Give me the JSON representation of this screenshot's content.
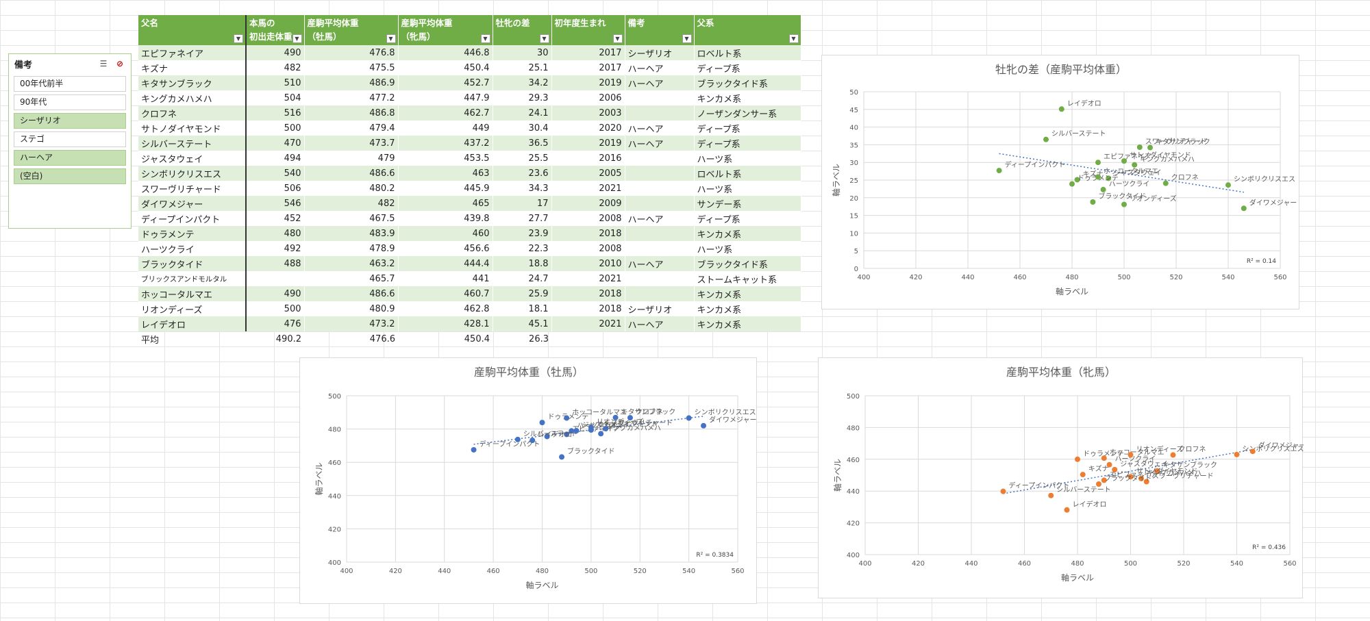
{
  "slicer": {
    "title": "備考",
    "icons": [
      "multi-select-icon",
      "clear-filter-icon"
    ],
    "items": [
      {
        "label": "00年代前半",
        "selected": false
      },
      {
        "label": "90年代",
        "selected": false
      },
      {
        "label": "シーザリオ",
        "selected": true
      },
      {
        "label": "ステゴ",
        "selected": false
      },
      {
        "label": "ハーヘア",
        "selected": true
      },
      {
        "label": "(空白)",
        "selected": true
      }
    ]
  },
  "table": {
    "headers": [
      {
        "l1": "父名",
        "l2": ""
      },
      {
        "l1": "本馬の",
        "l2": "初出走体重"
      },
      {
        "l1": "産駒平均体重",
        "l2": "（牡馬）"
      },
      {
        "l1": "産駒平均体重",
        "l2": "（牝馬）"
      },
      {
        "l1": "牡牝の差",
        "l2": ""
      },
      {
        "l1": "初年度生まれ",
        "l2": ""
      },
      {
        "l1": "備考",
        "l2": ""
      },
      {
        "l1": "父系",
        "l2": ""
      }
    ],
    "rows": [
      [
        "エピファネイア",
        "490",
        "476.8",
        "446.8",
        "30",
        "2017",
        "シーザリオ",
        "ロベルト系"
      ],
      [
        "キズナ",
        "482",
        "475.5",
        "450.4",
        "25.1",
        "2017",
        "ハーヘア",
        "ディープ系"
      ],
      [
        "キタサンブラック",
        "510",
        "486.9",
        "452.7",
        "34.2",
        "2019",
        "ハーヘア",
        "ブラックタイド系"
      ],
      [
        "キングカメハメハ",
        "504",
        "477.2",
        "447.9",
        "29.3",
        "2006",
        "",
        "キンカメ系"
      ],
      [
        "クロフネ",
        "516",
        "486.8",
        "462.7",
        "24.1",
        "2003",
        "",
        "ノーザンダンサー系"
      ],
      [
        "サトノダイヤモンド",
        "500",
        "479.4",
        "449",
        "30.4",
        "2020",
        "ハーヘア",
        "ディープ系"
      ],
      [
        "シルバーステート",
        "470",
        "473.7",
        "437.2",
        "36.5",
        "2019",
        "ハーヘア",
        "ディープ系"
      ],
      [
        "ジャスタウェイ",
        "494",
        "479",
        "453.5",
        "25.5",
        "2016",
        "",
        "ハーツ系"
      ],
      [
        "シンボリクリスエス",
        "540",
        "486.6",
        "463",
        "23.6",
        "2005",
        "",
        "ロベルト系"
      ],
      [
        "スワーヴリチャード",
        "506",
        "480.2",
        "445.9",
        "34.3",
        "2021",
        "",
        "ハーツ系"
      ],
      [
        "ダイワメジャー",
        "546",
        "482",
        "465",
        "17",
        "2009",
        "",
        "サンデー系"
      ],
      [
        "ディープインパクト",
        "452",
        "467.5",
        "439.8",
        "27.7",
        "2008",
        "ハーヘア",
        "ディープ系"
      ],
      [
        "ドゥラメンテ",
        "480",
        "483.9",
        "460",
        "23.9",
        "2018",
        "",
        "キンカメ系"
      ],
      [
        "ハーツクライ",
        "492",
        "478.9",
        "456.6",
        "22.3",
        "2008",
        "",
        "ハーツ系"
      ],
      [
        "ブラックタイド",
        "488",
        "463.2",
        "444.4",
        "18.8",
        "2010",
        "ハーヘア",
        "ブラックタイド系"
      ],
      [
        "ブリックスアンドモルタル",
        "",
        "465.7",
        "441",
        "24.7",
        "2021",
        "",
        "ストームキャット系"
      ],
      [
        "ホッコータルマエ",
        "490",
        "486.6",
        "460.7",
        "25.9",
        "2018",
        "",
        "キンカメ系"
      ],
      [
        "リオンディーズ",
        "500",
        "480.9",
        "462.8",
        "18.1",
        "2018",
        "シーザリオ",
        "キンカメ系"
      ],
      [
        "レイデオロ",
        "476",
        "473.2",
        "428.1",
        "45.1",
        "2021",
        "ハーヘア",
        "キンカメ系"
      ]
    ],
    "average": [
      "平均",
      "490.2",
      "476.6",
      "450.4",
      "26.3"
    ]
  },
  "chart_data": [
    {
      "type": "scatter",
      "id": "diff",
      "title": "牡牝の差（産駒平均体重）",
      "xlabel": "軸ラベル",
      "ylabel": "軸ラベル",
      "xlim": [
        400,
        560
      ],
      "ylim": [
        0,
        50
      ],
      "xticks": [
        400,
        420,
        440,
        460,
        480,
        500,
        520,
        540,
        560
      ],
      "yticks": [
        0,
        5,
        10,
        15,
        20,
        25,
        30,
        35,
        40,
        45,
        50
      ],
      "color": "#70ad47",
      "trendline": true,
      "r2": "R² = 0.14",
      "grid": true,
      "points": [
        {
          "x": 490,
          "y": 30,
          "label": "エピファネイア"
        },
        {
          "x": 482,
          "y": 25.1,
          "label": "キズナ"
        },
        {
          "x": 510,
          "y": 34.2,
          "label": "キタサンブラック"
        },
        {
          "x": 504,
          "y": 29.3,
          "label": "キングカメハメハ"
        },
        {
          "x": 516,
          "y": 24.1,
          "label": "クロフネ"
        },
        {
          "x": 500,
          "y": 30.4,
          "label": "サトノダイヤモンド"
        },
        {
          "x": 470,
          "y": 36.5,
          "label": "シルバーステート"
        },
        {
          "x": 494,
          "y": 25.5,
          "label": "ジャスタウェイ"
        },
        {
          "x": 540,
          "y": 23.6,
          "label": "シンボリクリスエス"
        },
        {
          "x": 506,
          "y": 34.3,
          "label": "スワーヴリチャード"
        },
        {
          "x": 546,
          "y": 17,
          "label": "ダイワメジャー"
        },
        {
          "x": 452,
          "y": 27.7,
          "label": "ディープインパクト"
        },
        {
          "x": 480,
          "y": 23.9,
          "label": "ドゥラメンテ"
        },
        {
          "x": 492,
          "y": 22.3,
          "label": "ハーツクライ"
        },
        {
          "x": 488,
          "y": 18.8,
          "label": "ブラックタイド"
        },
        {
          "x": 490,
          "y": 25.9,
          "label": "ホッコータルマエ"
        },
        {
          "x": 500,
          "y": 18.1,
          "label": "リオンディーズ"
        },
        {
          "x": 476,
          "y": 45.1,
          "label": "レイデオロ"
        }
      ]
    },
    {
      "type": "scatter",
      "id": "male",
      "title": "産駒平均体重（牡馬）",
      "xlabel": "軸ラベル",
      "ylabel": "軸ラベル",
      "xlim": [
        400,
        560
      ],
      "ylim": [
        400,
        500
      ],
      "xticks": [
        400,
        420,
        440,
        460,
        480,
        500,
        520,
        540,
        560
      ],
      "yticks": [
        400,
        420,
        440,
        460,
        480,
        500
      ],
      "color": "#4472c4",
      "trendline": true,
      "r2": "R² = 0.3834",
      "grid": true,
      "points": [
        {
          "x": 490,
          "y": 476.8,
          "label": "エピファネイア"
        },
        {
          "x": 482,
          "y": 475.5,
          "label": ""
        },
        {
          "x": 510,
          "y": 486.9,
          "label": "キタサンブラック"
        },
        {
          "x": 504,
          "y": 477.2,
          "label": "キングカメハメハ"
        },
        {
          "x": 516,
          "y": 486.8,
          "label": "クロフネ"
        },
        {
          "x": 500,
          "y": 479.4,
          "label": "サトノダイヤモンド"
        },
        {
          "x": 470,
          "y": 473.7,
          "label": "シルバーステート"
        },
        {
          "x": 494,
          "y": 479,
          "label": "ジャスタウェイ"
        },
        {
          "x": 540,
          "y": 486.6,
          "label": "シンボリクリスエス"
        },
        {
          "x": 506,
          "y": 480.2,
          "label": "スワーヴリチャード"
        },
        {
          "x": 546,
          "y": 482,
          "label": "ダイワメジャー"
        },
        {
          "x": 452,
          "y": 467.5,
          "label": "ディープインパクト"
        },
        {
          "x": 480,
          "y": 483.9,
          "label": "ドゥラメンテ"
        },
        {
          "x": 492,
          "y": 478.9,
          "label": "ハーツクライ"
        },
        {
          "x": 488,
          "y": 463.2,
          "label": "ブラックタイド"
        },
        {
          "x": 490,
          "y": 486.6,
          "label": "ホッコータルマエ"
        },
        {
          "x": 500,
          "y": 480.9,
          "label": "リオンディーズ"
        },
        {
          "x": 476,
          "y": 473.2,
          "label": "レイデオロ"
        }
      ]
    },
    {
      "type": "scatter",
      "id": "female",
      "title": "産駒平均体重（牝馬）",
      "xlabel": "軸ラベル",
      "ylabel": "軸ラベル",
      "xlim": [
        400,
        560
      ],
      "ylim": [
        400,
        500
      ],
      "xticks": [
        400,
        420,
        440,
        460,
        480,
        500,
        520,
        540,
        560
      ],
      "yticks": [
        400,
        420,
        440,
        460,
        480,
        500
      ],
      "color": "#ed7d31",
      "trendline": true,
      "r2": "R² = 0.436",
      "grid": true,
      "points": [
        {
          "x": 490,
          "y": 446.8,
          "label": "エピファネイア"
        },
        {
          "x": 482,
          "y": 450.4,
          "label": "キズナ"
        },
        {
          "x": 510,
          "y": 452.7,
          "label": "キタサンブラック"
        },
        {
          "x": 504,
          "y": 447.9,
          "label": "キングカメハメハ"
        },
        {
          "x": 516,
          "y": 462.7,
          "label": "クロフネ"
        },
        {
          "x": 500,
          "y": 449,
          "label": "サトノダイヤモンド"
        },
        {
          "x": 470,
          "y": 437.2,
          "label": "シルバーステート"
        },
        {
          "x": 494,
          "y": 453.5,
          "label": "ジャスタウェイ"
        },
        {
          "x": 540,
          "y": 463,
          "label": "シンボリクリスエス"
        },
        {
          "x": 506,
          "y": 445.9,
          "label": "スワーヴリチャード"
        },
        {
          "x": 546,
          "y": 465,
          "label": "ダイワメジャー"
        },
        {
          "x": 452,
          "y": 439.8,
          "label": "ディープインパクト"
        },
        {
          "x": 480,
          "y": 460,
          "label": "ドゥラメンテ"
        },
        {
          "x": 492,
          "y": 456.6,
          "label": "ハーツクライ"
        },
        {
          "x": 488,
          "y": 444.4,
          "label": "ブラックタイド"
        },
        {
          "x": 490,
          "y": 460.7,
          "label": "ホッコータルマエ"
        },
        {
          "x": 500,
          "y": 462.8,
          "label": "リオンディーズ"
        },
        {
          "x": 476,
          "y": 428.1,
          "label": "レイデオロ"
        }
      ]
    }
  ]
}
